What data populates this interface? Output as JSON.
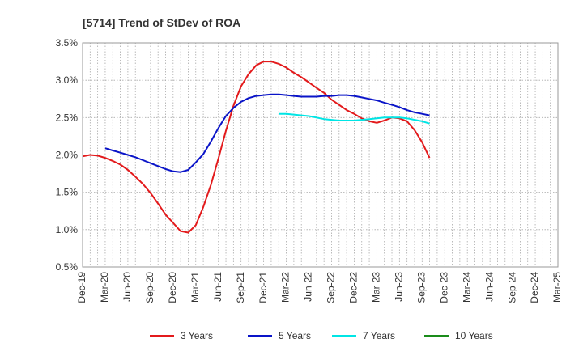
{
  "chart_data": {
    "type": "line",
    "title": "[5714]  Trend of StDev of ROA",
    "xlabel": "",
    "ylabel": "",
    "ylim": [
      0.5,
      3.5
    ],
    "yticks": [
      "0.5%",
      "1.0%",
      "1.5%",
      "2.0%",
      "2.5%",
      "3.0%",
      "3.5%"
    ],
    "categories": [
      "Dec-19",
      "Mar-20",
      "Jun-20",
      "Sep-20",
      "Dec-20",
      "Mar-21",
      "Jun-21",
      "Sep-21",
      "Dec-21",
      "Mar-22",
      "Jun-22",
      "Sep-22",
      "Dec-22",
      "Mar-23",
      "Jun-23",
      "Sep-23",
      "Dec-23",
      "Mar-24",
      "Jun-24",
      "Sep-24",
      "Dec-24",
      "Mar-25"
    ],
    "grid": true,
    "legend_position": "bottom",
    "series": [
      {
        "name": "3 Years",
        "color": "#e31a1c",
        "points": [
          [
            0,
            1.98
          ],
          [
            0.33,
            2.0
          ],
          [
            0.67,
            1.99
          ],
          [
            1,
            1.96
          ],
          [
            1.33,
            1.92
          ],
          [
            1.67,
            1.87
          ],
          [
            2,
            1.8
          ],
          [
            2.33,
            1.71
          ],
          [
            2.67,
            1.61
          ],
          [
            3,
            1.49
          ],
          [
            3.33,
            1.35
          ],
          [
            3.67,
            1.2
          ],
          [
            4,
            1.09
          ],
          [
            4.33,
            0.98
          ],
          [
            4.67,
            0.96
          ],
          [
            5,
            1.06
          ],
          [
            5.33,
            1.3
          ],
          [
            5.67,
            1.6
          ],
          [
            6,
            1.95
          ],
          [
            6.33,
            2.32
          ],
          [
            6.67,
            2.66
          ],
          [
            7,
            2.92
          ],
          [
            7.33,
            3.08
          ],
          [
            7.67,
            3.2
          ],
          [
            8,
            3.25
          ],
          [
            8.33,
            3.25
          ],
          [
            8.67,
            3.22
          ],
          [
            9,
            3.17
          ],
          [
            9.33,
            3.1
          ],
          [
            9.67,
            3.04
          ],
          [
            10,
            2.97
          ],
          [
            10.33,
            2.9
          ],
          [
            10.67,
            2.83
          ],
          [
            11,
            2.74
          ],
          [
            11.33,
            2.67
          ],
          [
            11.67,
            2.6
          ],
          [
            12,
            2.55
          ],
          [
            12.33,
            2.49
          ],
          [
            12.67,
            2.45
          ],
          [
            13,
            2.43
          ],
          [
            13.33,
            2.46
          ],
          [
            13.67,
            2.5
          ],
          [
            14,
            2.49
          ],
          [
            14.33,
            2.45
          ],
          [
            14.67,
            2.33
          ],
          [
            15,
            2.17
          ],
          [
            15.33,
            1.96
          ]
        ]
      },
      {
        "name": "5 Years",
        "color": "#0a14c8",
        "points": [
          [
            1,
            2.09
          ],
          [
            1.33,
            2.06
          ],
          [
            1.67,
            2.03
          ],
          [
            2,
            2.0
          ],
          [
            2.33,
            1.97
          ],
          [
            2.67,
            1.93
          ],
          [
            3,
            1.89
          ],
          [
            3.33,
            1.85
          ],
          [
            3.67,
            1.81
          ],
          [
            4,
            1.78
          ],
          [
            4.33,
            1.77
          ],
          [
            4.67,
            1.8
          ],
          [
            5,
            1.9
          ],
          [
            5.33,
            2.01
          ],
          [
            5.67,
            2.18
          ],
          [
            6,
            2.36
          ],
          [
            6.33,
            2.52
          ],
          [
            6.67,
            2.63
          ],
          [
            7,
            2.71
          ],
          [
            7.33,
            2.76
          ],
          [
            7.67,
            2.79
          ],
          [
            8,
            2.8
          ],
          [
            8.33,
            2.81
          ],
          [
            8.67,
            2.81
          ],
          [
            9,
            2.8
          ],
          [
            9.33,
            2.79
          ],
          [
            9.67,
            2.78
          ],
          [
            10,
            2.78
          ],
          [
            10.33,
            2.78
          ],
          [
            10.67,
            2.79
          ],
          [
            11,
            2.79
          ],
          [
            11.33,
            2.8
          ],
          [
            11.67,
            2.8
          ],
          [
            12,
            2.79
          ],
          [
            12.33,
            2.77
          ],
          [
            12.67,
            2.75
          ],
          [
            13,
            2.73
          ],
          [
            13.33,
            2.7
          ],
          [
            13.67,
            2.67
          ],
          [
            14,
            2.64
          ],
          [
            14.33,
            2.6
          ],
          [
            14.67,
            2.57
          ],
          [
            15,
            2.55
          ],
          [
            15.33,
            2.53
          ]
        ]
      },
      {
        "name": "7 Years",
        "color": "#00e5e5",
        "points": [
          [
            8.67,
            2.55
          ],
          [
            9,
            2.55
          ],
          [
            9.33,
            2.54
          ],
          [
            9.67,
            2.53
          ],
          [
            10,
            2.52
          ],
          [
            10.33,
            2.5
          ],
          [
            10.67,
            2.48
          ],
          [
            11,
            2.47
          ],
          [
            11.33,
            2.46
          ],
          [
            11.67,
            2.46
          ],
          [
            12,
            2.46
          ],
          [
            12.33,
            2.47
          ],
          [
            12.67,
            2.48
          ],
          [
            13,
            2.49
          ],
          [
            13.33,
            2.5
          ],
          [
            13.67,
            2.5
          ],
          [
            14,
            2.5
          ],
          [
            14.33,
            2.49
          ],
          [
            14.67,
            2.47
          ],
          [
            15,
            2.45
          ],
          [
            15.33,
            2.42
          ]
        ]
      },
      {
        "name": "10 Years",
        "color": "#1a8c1a",
        "points": []
      }
    ]
  }
}
